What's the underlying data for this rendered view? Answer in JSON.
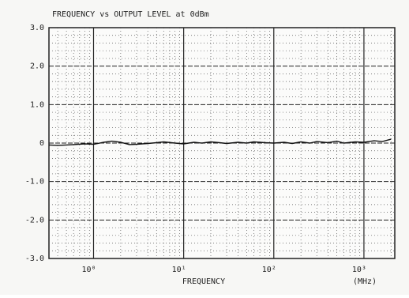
{
  "chart_data": {
    "type": "line",
    "title": "FREQUENCY vs OUTPUT LEVEL  at 0dBm",
    "x_label": "FREQUENCY",
    "x_unit": "(MHz)",
    "log_x": true,
    "grid": true,
    "xlim": [
      0.32,
      2200
    ],
    "ylim": [
      -3,
      3
    ],
    "xticks": [
      {
        "value": 1,
        "label": "10⁰"
      },
      {
        "value": 10,
        "label": "10¹"
      },
      {
        "value": 100,
        "label": "10²"
      },
      {
        "value": 1000,
        "label": "10³"
      }
    ],
    "yticks": [
      {
        "value": 3,
        "label": "3.0"
      },
      {
        "value": 2,
        "label": "2.0"
      },
      {
        "value": 1,
        "label": "1.0"
      },
      0,
      {
        "value": -1,
        "label": "-1.0"
      },
      {
        "value": -2,
        "label": "-2.0"
      },
      {
        "value": -3,
        "label": "-3.0"
      }
    ],
    "xminorticks": [
      0.4,
      0.5,
      0.6,
      0.7,
      0.8,
      0.9,
      2,
      3,
      4,
      5,
      6,
      7,
      8,
      9,
      20,
      30,
      40,
      50,
      60,
      70,
      80,
      90,
      200,
      300,
      400,
      500,
      600,
      700,
      800,
      900,
      2000
    ],
    "yminorticks": [
      2.8,
      2.6,
      2.4,
      2.2,
      1.8,
      1.6,
      1.4,
      1.2,
      0.8,
      0.6,
      0.4,
      0.2,
      -0.2,
      -0.4,
      -0.6,
      -0.8,
      -1.2,
      -1.4,
      -1.6,
      -1.8,
      -2.2,
      -2.4,
      -2.6,
      -2.8
    ],
    "series": [
      {
        "color": "#111111",
        "x": [
          0.32,
          0.4,
          0.5,
          0.6,
          0.8,
          1,
          1.3,
          1.6,
          2,
          2.5,
          3,
          4,
          5,
          6,
          8,
          10,
          13,
          16,
          20,
          25,
          30,
          40,
          50,
          60,
          80,
          100,
          130,
          160,
          200,
          250,
          300,
          400,
          500,
          600,
          800,
          1000,
          1300,
          1600,
          2000
        ],
        "values": [
          -0.05,
          -0.06,
          -0.05,
          -0.04,
          -0.02,
          -0.03,
          0.02,
          0.05,
          0.02,
          -0.04,
          -0.03,
          -0.01,
          0.01,
          0.03,
          0.0,
          -0.02,
          0.02,
          0.0,
          0.03,
          0.01,
          -0.01,
          0.02,
          0.0,
          0.03,
          0.01,
          0.0,
          0.02,
          -0.01,
          0.03,
          0.0,
          0.04,
          0.01,
          0.05,
          0.0,
          0.03,
          0.02,
          0.06,
          0.04,
          0.1
        ]
      }
    ]
  }
}
